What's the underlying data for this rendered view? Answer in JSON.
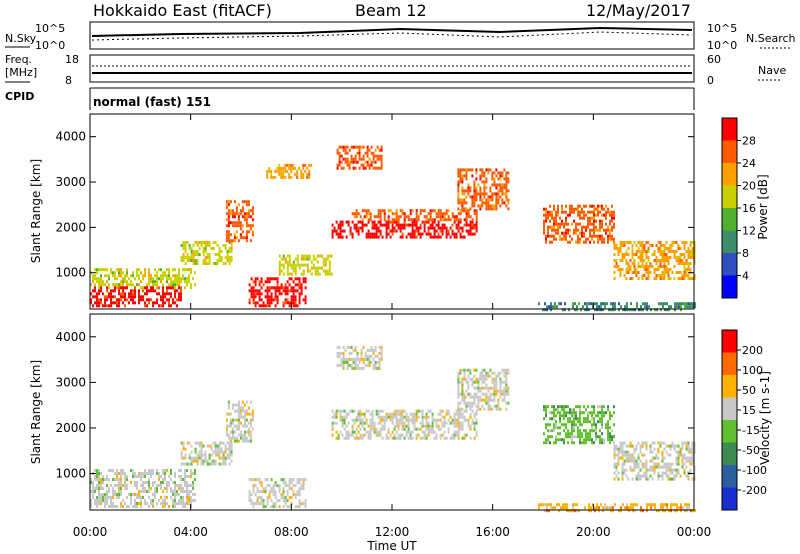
{
  "header": {
    "station": "Hokkaido East (fitACF)",
    "beam": "Beam 12",
    "date": "12/May/2017"
  },
  "top_panels": {
    "nsky_label": "N.Sky",
    "nsearch_label": "N.Search",
    "noise_ticks": [
      "10^5",
      "10^0"
    ],
    "freq_label_1": "Freq.",
    "freq_label_2": "[MHz]",
    "freq_ticks": [
      "18",
      "8"
    ],
    "nave_label": "Nave",
    "nave_ticks": [
      "60",
      "0"
    ],
    "cpid_label": "CPID",
    "cpid_value": "normal (fast) 151"
  },
  "chart_data": [
    {
      "type": "heatmap",
      "name": "power",
      "ylabel": "Slant Range [km]",
      "yticks": [
        1000,
        2000,
        3000,
        4000
      ],
      "ylim": [
        200,
        4500
      ],
      "xlim": [
        0,
        24
      ],
      "colorbar_label": "Power [dB]",
      "colorbar_ticks": [
        "4",
        "8",
        "12",
        "16",
        "20",
        "24",
        "28"
      ],
      "colors": [
        "#0000ff",
        "#3050c0",
        "#3a8f6a",
        "#50b030",
        "#c8d000",
        "#ffa000",
        "#ff5a00",
        "#ff0000"
      ],
      "patches": [
        {
          "t0": 0.0,
          "t1": 4.2,
          "r0": 700,
          "r1": 1100,
          "level": 4
        },
        {
          "t0": 0.0,
          "t1": 3.6,
          "r0": 300,
          "r1": 700,
          "level": 7
        },
        {
          "t0": 3.6,
          "t1": 5.6,
          "r0": 1200,
          "r1": 1700,
          "level": 4
        },
        {
          "t0": 5.4,
          "t1": 6.5,
          "r0": 1700,
          "r1": 2600,
          "level": 6
        },
        {
          "t0": 6.3,
          "t1": 8.6,
          "r0": 300,
          "r1": 900,
          "level": 7
        },
        {
          "t0": 7.5,
          "t1": 9.6,
          "r0": 1000,
          "r1": 1400,
          "level": 4
        },
        {
          "t0": 9.6,
          "t1": 15.4,
          "r0": 1800,
          "r1": 2150,
          "level": 7
        },
        {
          "t0": 10.4,
          "t1": 15.4,
          "r0": 2150,
          "r1": 2400,
          "level": 6
        },
        {
          "t0": 14.6,
          "t1": 16.6,
          "r0": 2400,
          "r1": 3300,
          "level": 6
        },
        {
          "t0": 9.8,
          "t1": 11.6,
          "r0": 3300,
          "r1": 3800,
          "level": 6
        },
        {
          "t0": 7.0,
          "t1": 8.8,
          "r0": 3100,
          "r1": 3400,
          "level": 5
        },
        {
          "t0": 18.0,
          "t1": 20.8,
          "r0": 1700,
          "r1": 2500,
          "level": 6
        },
        {
          "t0": 20.8,
          "t1": 24.0,
          "r0": 900,
          "r1": 1700,
          "level": 5
        },
        {
          "t0": 17.8,
          "t1": 24.0,
          "r0": 200,
          "r1": 350,
          "level": 2
        }
      ]
    },
    {
      "type": "heatmap",
      "name": "velocity",
      "ylabel": "Slant Range [km]",
      "yticks": [
        1000,
        2000,
        3000,
        4000
      ],
      "ylim": [
        200,
        4500
      ],
      "xlim": [
        0,
        24
      ],
      "colorbar_label": "Velocity [m s-1]",
      "colorbar_ticks": [
        "200",
        "100",
        "50",
        "15",
        "-15",
        "-50",
        "-100",
        "-200"
      ],
      "colors": [
        "#1a2fd0",
        "#2b5fa0",
        "#3f8a50",
        "#60c030",
        "#c8c8c8",
        "#ffb000",
        "#ff6a00",
        "#ff0000"
      ],
      "patches": [
        {
          "t0": 0.0,
          "t1": 4.2,
          "r0": 300,
          "r1": 1100,
          "level": 4
        },
        {
          "t0": 3.6,
          "t1": 5.6,
          "r0": 1200,
          "r1": 1700,
          "level": 4
        },
        {
          "t0": 5.4,
          "t1": 6.5,
          "r0": 1700,
          "r1": 2600,
          "level": 4
        },
        {
          "t0": 6.3,
          "t1": 8.6,
          "r0": 300,
          "r1": 900,
          "level": 4
        },
        {
          "t0": 9.6,
          "t1": 15.4,
          "r0": 1800,
          "r1": 2400,
          "level": 4
        },
        {
          "t0": 14.6,
          "t1": 16.6,
          "r0": 2400,
          "r1": 3300,
          "level": 4
        },
        {
          "t0": 9.8,
          "t1": 11.6,
          "r0": 3300,
          "r1": 3800,
          "level": 4
        },
        {
          "t0": 18.0,
          "t1": 20.8,
          "r0": 1700,
          "r1": 2500,
          "level": 3
        },
        {
          "t0": 20.8,
          "t1": 24.0,
          "r0": 900,
          "r1": 1700,
          "level": 4
        },
        {
          "t0": 17.8,
          "t1": 24.0,
          "r0": 200,
          "r1": 350,
          "level": 5
        }
      ]
    }
  ],
  "xaxis": {
    "label": "Time UT",
    "ticks": [
      "00:00",
      "04:00",
      "08:00",
      "12:00",
      "16:00",
      "20:00",
      "00:00"
    ]
  }
}
